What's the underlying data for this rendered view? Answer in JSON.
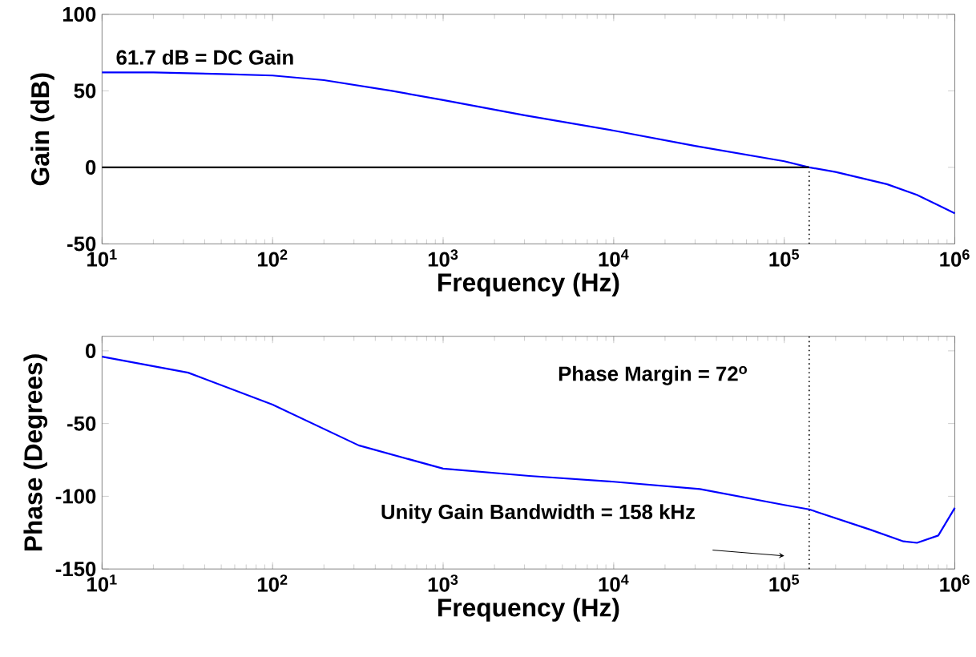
{
  "chart_data": [
    {
      "type": "line",
      "xlabel": "Frequency (Hz)",
      "ylabel": "Gain (dB)",
      "log": "x",
      "xlim": [
        10,
        1000000
      ],
      "ylim": [
        -50,
        100
      ],
      "xticks": [
        {
          "value": 10,
          "label": "10$^{1}$"
        },
        {
          "value": 100,
          "label": "10$^{2}$"
        },
        {
          "value": 1000,
          "label": "10$^{3}$"
        },
        {
          "value": 10000,
          "label": "10$^{4}$"
        },
        {
          "value": 100000,
          "label": "10$^{5}$"
        },
        {
          "value": 1000000,
          "label": "10$^{6}$"
        }
      ],
      "yticks": [
        -50,
        0,
        50,
        100
      ],
      "series": [
        {
          "color": "#0000ff",
          "x": [
            10,
            20,
            50,
            100,
            200,
            500,
            1000,
            3000,
            10000,
            30000,
            100000,
            140000,
            200000,
            400000,
            600000,
            1000000
          ],
          "values": [
            62,
            62,
            61,
            60,
            57,
            50,
            44,
            34,
            24,
            14,
            4,
            0,
            -3,
            -11,
            -18,
            -30
          ]
        },
        {
          "color": "#000000",
          "x": [
            10,
            140000
          ],
          "values": [
            0,
            0
          ]
        }
      ],
      "ref_lines": [
        {
          "axis": "x",
          "value": 140000,
          "color": "#000000",
          "line_style": "dotted"
        }
      ],
      "annotations": [
        "61.7 dB  = DC Gain"
      ]
    },
    {
      "type": "line",
      "xlabel": "Frequency (Hz)",
      "ylabel": "Phase (Degrees)",
      "log": "x",
      "xlim": [
        10,
        1000000
      ],
      "ylim": [
        -150,
        10
      ],
      "xticks": [
        {
          "value": 10,
          "label": "10$^{1}$"
        },
        {
          "value": 100,
          "label": "10$^{2}$"
        },
        {
          "value": 1000,
          "label": "10$^{3}$"
        },
        {
          "value": 10000,
          "label": "10$^{4}$"
        },
        {
          "value": 100000,
          "label": "10$^{5}$"
        },
        {
          "value": 1000000,
          "label": "10$^{6}$"
        }
      ],
      "yticks": [
        -150,
        -100,
        -50,
        0
      ],
      "series": [
        {
          "color": "#0000ff",
          "x": [
            10,
            32,
            100,
            320,
            1000,
            3200,
            10000,
            32000,
            100000,
            140000,
            320000,
            500000,
            600000,
            800000,
            1000000
          ],
          "values": [
            -4,
            -15,
            -37,
            -65,
            -81,
            -86,
            -90,
            -95,
            -106,
            -109,
            -123,
            -131,
            -132,
            -127,
            -108
          ]
        }
      ],
      "ref_lines": [
        {
          "axis": "x",
          "value": 140000,
          "color": "#000000",
          "line_style": "dotted"
        }
      ],
      "annotations": [
        "Phase Margin = 72$^{o}$",
        "Unity Gain Bandwidth = 158 kHz"
      ]
    }
  ]
}
